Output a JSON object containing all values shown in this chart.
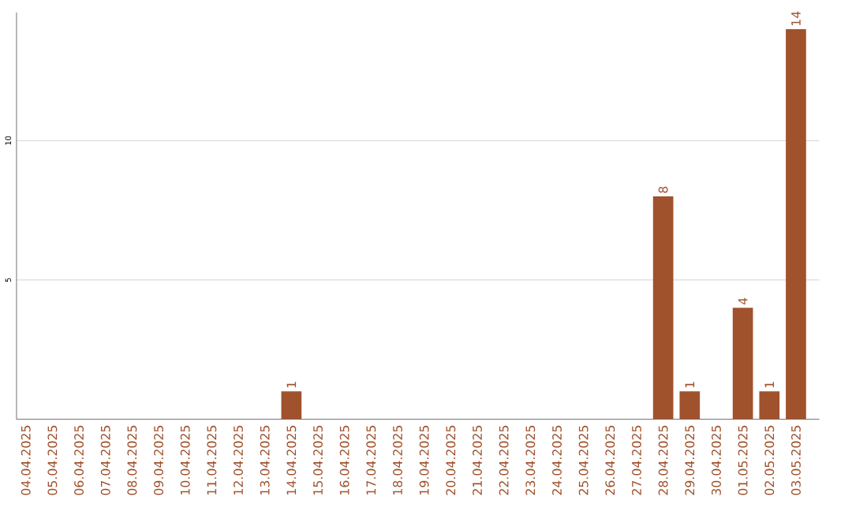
{
  "chart_data": {
    "type": "bar",
    "categories": [
      "04.04.2025",
      "05.04.2025",
      "06.04.2025",
      "07.04.2025",
      "08.04.2025",
      "09.04.2025",
      "10.04.2025",
      "11.04.2025",
      "12.04.2025",
      "13.04.2025",
      "14.04.2025",
      "15.04.2025",
      "16.04.2025",
      "17.04.2025",
      "18.04.2025",
      "19.04.2025",
      "20.04.2025",
      "21.04.2025",
      "22.04.2025",
      "23.04.2025",
      "24.04.2025",
      "25.04.2025",
      "26.04.2025",
      "27.04.2025",
      "28.04.2025",
      "29.04.2025",
      "30.04.2025",
      "01.05.2025",
      "02.05.2025",
      "03.05.2025"
    ],
    "values": [
      0,
      0,
      0,
      0,
      0,
      0,
      0,
      0,
      0,
      0,
      1,
      0,
      0,
      0,
      0,
      0,
      0,
      0,
      0,
      0,
      0,
      0,
      0,
      0,
      8,
      1,
      0,
      4,
      1,
      14
    ],
    "value_labels": [
      null,
      null,
      null,
      null,
      null,
      null,
      null,
      null,
      null,
      null,
      "1",
      null,
      null,
      null,
      null,
      null,
      null,
      null,
      null,
      null,
      null,
      null,
      null,
      null,
      "8",
      "1",
      null,
      "4",
      "1",
      "14"
    ],
    "color": "#a0522d",
    "ylim": [
      0,
      14.6
    ],
    "yticks": [
      5,
      10
    ],
    "grid": "y"
  }
}
